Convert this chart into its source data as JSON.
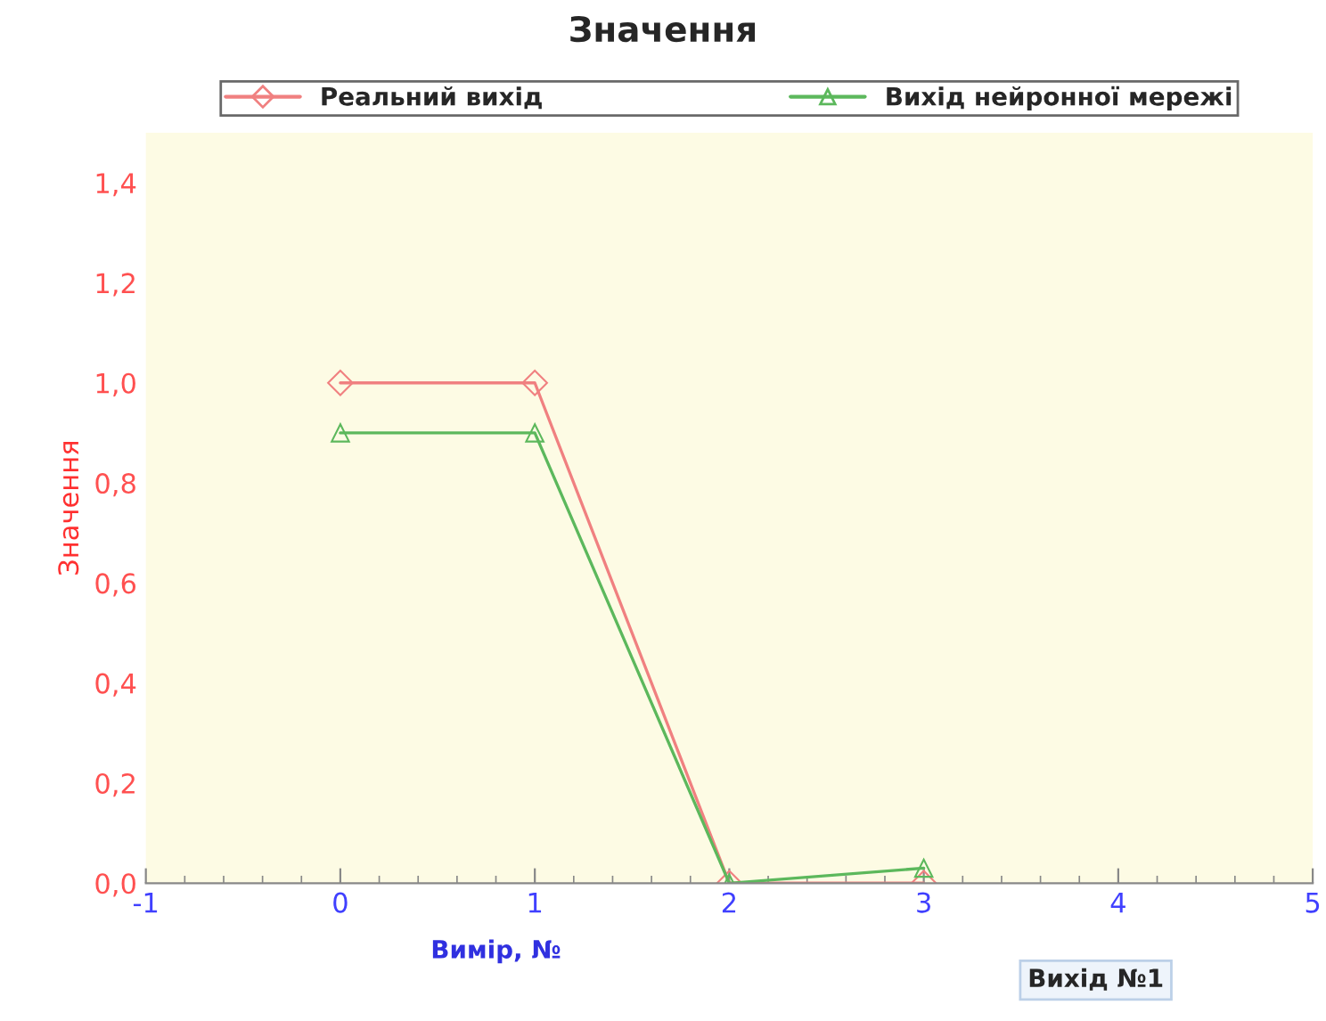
{
  "chart_data": {
    "type": "line",
    "title": "Значення",
    "xlabel": "Вимір, №",
    "ylabel": "Значення",
    "x": [
      0,
      1,
      2,
      3
    ],
    "series": [
      {
        "name": "Реальний вихід",
        "color": "#f08080",
        "marker": "diamond",
        "values": [
          1.0,
          1.0,
          0.0,
          0.0
        ]
      },
      {
        "name": "Вихід нейронної мережі",
        "color": "#5cb85c",
        "marker": "triangle",
        "values": [
          0.9,
          0.9,
          0.0,
          0.03
        ]
      }
    ],
    "xlim": [
      -1,
      5
    ],
    "xticks": [
      -1,
      0,
      1,
      2,
      3,
      4,
      5
    ],
    "ylim": [
      0,
      1.5
    ],
    "yticks": [
      {
        "value": 0,
        "label": "0,0"
      },
      {
        "value": 0.2,
        "label": "0,2"
      },
      {
        "value": 0.4,
        "label": "0,4"
      },
      {
        "value": 0.6,
        "label": "0,6"
      },
      {
        "value": 0.8,
        "label": "0,8"
      },
      {
        "value": 1.0,
        "label": "1,0"
      },
      {
        "value": 1.2,
        "label": "1,2"
      },
      {
        "value": 1.4,
        "label": "1,4"
      }
    ],
    "grid": false,
    "legend": "top",
    "line_style": "solid",
    "annotations": [
      "Вихід №1"
    ]
  }
}
